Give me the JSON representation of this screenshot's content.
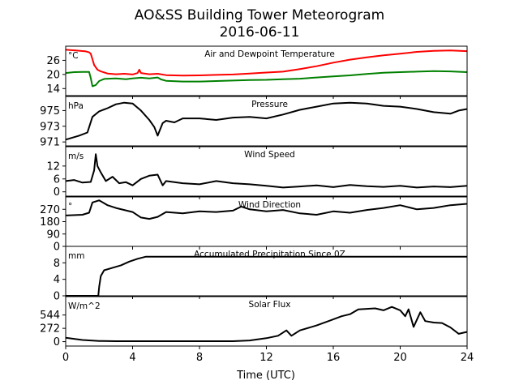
{
  "chart_data": {
    "type": "line",
    "title": "AO&SS Building Tower Meteorogram",
    "subtitle": "2016-06-11",
    "xlabel": "Time (UTC)",
    "xlim": [
      0,
      24
    ],
    "xticks": [
      0,
      4,
      8,
      12,
      16,
      20,
      24
    ],
    "panels": [
      {
        "title": "Air and Dewpoint Temperature",
        "unit": "°C",
        "ylim": [
          11,
          32
        ],
        "yticks": [
          14,
          20,
          26
        ],
        "series": [
          {
            "color": "#ff0000",
            "points": [
              [
                0,
                30.5
              ],
              [
                0.6,
                30.2
              ],
              [
                1.2,
                29.8
              ],
              [
                1.4,
                29.4
              ],
              [
                1.5,
                28.8
              ],
              [
                1.6,
                26.5
              ],
              [
                1.7,
                24
              ],
              [
                1.9,
                22
              ],
              [
                2.1,
                21.3
              ],
              [
                2.5,
                20.4
              ],
              [
                3,
                20.1
              ],
              [
                3.5,
                20.3
              ],
              [
                4,
                20.0
              ],
              [
                4.3,
                20.6
              ],
              [
                4.4,
                22.0
              ],
              [
                4.5,
                20.6
              ],
              [
                5,
                20.1
              ],
              [
                5.5,
                20.3
              ],
              [
                6,
                19.7
              ],
              [
                7,
                19.5
              ],
              [
                8,
                19.6
              ],
              [
                9,
                19.8
              ],
              [
                10,
                20.0
              ],
              [
                11,
                20.4
              ],
              [
                12,
                20.8
              ],
              [
                13,
                21.2
              ],
              [
                14,
                22.3
              ],
              [
                15,
                23.5
              ],
              [
                16,
                25.0
              ],
              [
                17,
                26.3
              ],
              [
                18,
                27.3
              ],
              [
                19,
                28.1
              ],
              [
                20,
                28.8
              ],
              [
                21,
                29.6
              ],
              [
                22,
                30.0
              ],
              [
                23,
                30.2
              ],
              [
                24,
                29.9
              ]
            ]
          },
          {
            "color": "#008000",
            "points": [
              [
                0,
                20.6
              ],
              [
                0.5,
                21.0
              ],
              [
                1,
                21.1
              ],
              [
                1.4,
                21.1
              ],
              [
                1.5,
                18.5
              ],
              [
                1.6,
                15.0
              ],
              [
                1.8,
                15.5
              ],
              [
                2,
                17.2
              ],
              [
                2.3,
                18.1
              ],
              [
                3,
                18.3
              ],
              [
                3.6,
                18.0
              ],
              [
                4,
                18.3
              ],
              [
                4.5,
                18.6
              ],
              [
                5,
                18.3
              ],
              [
                5.5,
                18.7
              ],
              [
                5.7,
                17.9
              ],
              [
                6,
                17.3
              ],
              [
                7,
                17.0
              ],
              [
                8,
                17.0
              ],
              [
                9,
                17.2
              ],
              [
                10,
                17.4
              ],
              [
                11,
                17.6
              ],
              [
                12,
                17.7
              ],
              [
                13,
                18.0
              ],
              [
                14,
                18.2
              ],
              [
                15,
                18.7
              ],
              [
                16,
                19.2
              ],
              [
                17,
                19.6
              ],
              [
                18,
                20.2
              ],
              [
                19,
                20.7
              ],
              [
                20,
                21.0
              ],
              [
                21,
                21.2
              ],
              [
                22,
                21.4
              ],
              [
                23,
                21.3
              ],
              [
                24,
                21.0
              ]
            ]
          }
        ]
      },
      {
        "title": "Pressure",
        "unit": "hPa",
        "ylim": [
          970.5,
          976.8
        ],
        "yticks": [
          971,
          973,
          975
        ],
        "series": [
          {
            "color": "#000000",
            "points": [
              [
                0,
                971.3
              ],
              [
                0.8,
                971.8
              ],
              [
                1.3,
                972.2
              ],
              [
                1.6,
                974.2
              ],
              [
                2,
                974.9
              ],
              [
                2.5,
                975.3
              ],
              [
                3,
                975.8
              ],
              [
                3.5,
                976.0
              ],
              [
                4,
                975.9
              ],
              [
                4.5,
                975.0
              ],
              [
                5,
                973.8
              ],
              [
                5.3,
                972.9
              ],
              [
                5.5,
                971.8
              ],
              [
                5.8,
                973.4
              ],
              [
                6,
                973.7
              ],
              [
                6.5,
                973.5
              ],
              [
                7,
                974.0
              ],
              [
                8,
                974.0
              ],
              [
                9,
                973.8
              ],
              [
                10,
                974.1
              ],
              [
                11,
                974.2
              ],
              [
                12,
                974.0
              ],
              [
                13,
                974.5
              ],
              [
                14,
                975.1
              ],
              [
                15,
                975.5
              ],
              [
                16,
                975.9
              ],
              [
                17,
                976.0
              ],
              [
                18,
                975.9
              ],
              [
                19,
                975.6
              ],
              [
                20,
                975.5
              ],
              [
                21,
                975.2
              ],
              [
                22,
                974.8
              ],
              [
                23,
                974.6
              ],
              [
                23.5,
                975.0
              ],
              [
                24,
                975.2
              ]
            ]
          }
        ]
      },
      {
        "title": "Wind Speed",
        "unit": "m/s",
        "ylim": [
          -2,
          21
        ],
        "yticks": [
          0,
          6,
          12
        ],
        "series": [
          {
            "color": "#000000",
            "points": [
              [
                0,
                5
              ],
              [
                0.5,
                5.5
              ],
              [
                1,
                4.3
              ],
              [
                1.5,
                4.6
              ],
              [
                1.7,
                10
              ],
              [
                1.8,
                17.5
              ],
              [
                1.9,
                12
              ],
              [
                2.1,
                9
              ],
              [
                2.4,
                5
              ],
              [
                2.8,
                7
              ],
              [
                3.2,
                4
              ],
              [
                3.6,
                4.5
              ],
              [
                4,
                3
              ],
              [
                4.5,
                6
              ],
              [
                5,
                7.5
              ],
              [
                5.5,
                8
              ],
              [
                5.8,
                3
              ],
              [
                6,
                5
              ],
              [
                7,
                4
              ],
              [
                8,
                3.5
              ],
              [
                9,
                5
              ],
              [
                10,
                4
              ],
              [
                11,
                3.5
              ],
              [
                12,
                2.8
              ],
              [
                13,
                2
              ],
              [
                14,
                2.5
              ],
              [
                15,
                3
              ],
              [
                16,
                2.2
              ],
              [
                17,
                3.2
              ],
              [
                18,
                2.6
              ],
              [
                19,
                2.3
              ],
              [
                20,
                2.8
              ],
              [
                21,
                2
              ],
              [
                22,
                2.5
              ],
              [
                23,
                2.2
              ],
              [
                24,
                2.8
              ]
            ]
          }
        ]
      },
      {
        "title": "Wind Direction",
        "unit": "°",
        "ylim": [
          0,
          360
        ],
        "yticks": [
          0,
          90,
          180,
          270
        ],
        "series": [
          {
            "color": "#000000",
            "points": [
              [
                0,
                225
              ],
              [
                1,
                230
              ],
              [
                1.4,
                245
              ],
              [
                1.6,
                320
              ],
              [
                2,
                335
              ],
              [
                2.5,
                300
              ],
              [
                3,
                280
              ],
              [
                3.5,
                265
              ],
              [
                4,
                250
              ],
              [
                4.5,
                210
              ],
              [
                5,
                200
              ],
              [
                5.5,
                215
              ],
              [
                6,
                250
              ],
              [
                7,
                240
              ],
              [
                8,
                255
              ],
              [
                9,
                250
              ],
              [
                10,
                260
              ],
              [
                10.5,
                290
              ],
              [
                11,
                270
              ],
              [
                12,
                255
              ],
              [
                13,
                265
              ],
              [
                14,
                240
              ],
              [
                15,
                230
              ],
              [
                16,
                255
              ],
              [
                17,
                245
              ],
              [
                18,
                265
              ],
              [
                19,
                280
              ],
              [
                20,
                300
              ],
              [
                21,
                270
              ],
              [
                22,
                280
              ],
              [
                23,
                300
              ],
              [
                24,
                310
              ]
            ]
          }
        ]
      },
      {
        "title": "Accumulated Precipitation Since 0Z",
        "unit": "mm",
        "ylim": [
          0,
          12
        ],
        "yticks": [
          0,
          4,
          8
        ],
        "series": [
          {
            "color": "#000000",
            "points": [
              [
                0,
                0
              ],
              [
                1.95,
                0
              ],
              [
                2.0,
                2.2
              ],
              [
                2.1,
                4.8
              ],
              [
                2.3,
                6.2
              ],
              [
                2.8,
                6.8
              ],
              [
                3.3,
                7.4
              ],
              [
                3.8,
                8.3
              ],
              [
                4.3,
                9.0
              ],
              [
                4.8,
                9.5
              ],
              [
                5,
                9.5
              ],
              [
                24,
                9.5
              ]
            ]
          }
        ]
      },
      {
        "title": "Solar Flux",
        "unit": "W/m^2",
        "ylim": [
          -90,
          920
        ],
        "yticks": [
          0,
          272,
          544
        ],
        "series": [
          {
            "color": "#000000",
            "points": [
              [
                0,
                80
              ],
              [
                1,
                35
              ],
              [
                2,
                15
              ],
              [
                3,
                10
              ],
              [
                4,
                10
              ],
              [
                6,
                10
              ],
              [
                8,
                10
              ],
              [
                10,
                10
              ],
              [
                11,
                25
              ],
              [
                12,
                70
              ],
              [
                12.7,
                120
              ],
              [
                13.2,
                230
              ],
              [
                13.5,
                120
              ],
              [
                14,
                230
              ],
              [
                15,
                330
              ],
              [
                15.8,
                430
              ],
              [
                16.5,
                520
              ],
              [
                17,
                560
              ],
              [
                17.5,
                660
              ],
              [
                18,
                670
              ],
              [
                18.5,
                680
              ],
              [
                19,
                640
              ],
              [
                19.5,
                710
              ],
              [
                20,
                640
              ],
              [
                20.3,
                520
              ],
              [
                20.5,
                660
              ],
              [
                20.8,
                300
              ],
              [
                21.2,
                600
              ],
              [
                21.5,
                420
              ],
              [
                22,
                390
              ],
              [
                22.5,
                380
              ],
              [
                23,
                290
              ],
              [
                23.5,
                160
              ],
              [
                24,
                200
              ]
            ]
          }
        ]
      }
    ]
  }
}
